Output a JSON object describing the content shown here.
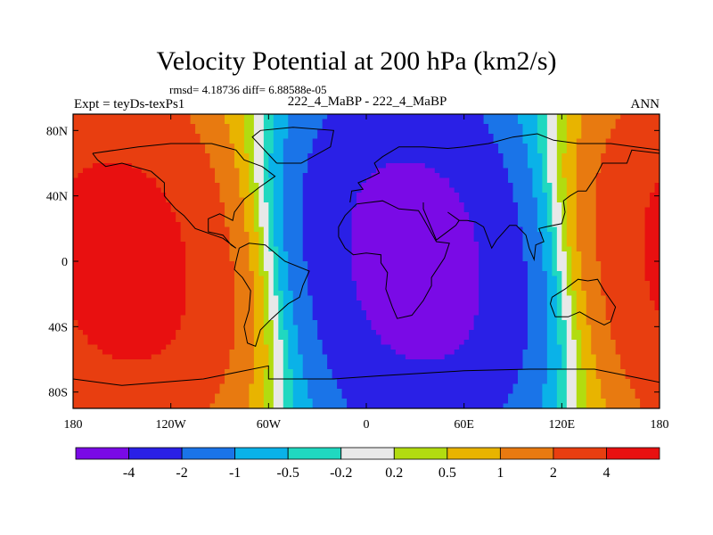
{
  "header": {
    "title": "Velocity Potential at 200 hPa (km2/s)",
    "stats": "rmsd= 4.18736  diff= 6.88588e-05",
    "expt": "Expt = teyDs-texPs1",
    "case": "222_4_MaBP - 222_4_MaBP",
    "season": "ANN"
  },
  "chart_data": {
    "type": "heatmap",
    "title": "Velocity Potential at 200 hPa (km2/s)",
    "subtitle": "222_4_MaBP - 222_4_MaBP",
    "xlabel": "",
    "ylabel": "",
    "xlim": [
      -180,
      180
    ],
    "ylim": [
      -90,
      90
    ],
    "x_ticks": [
      {
        "value": -180,
        "label": "180"
      },
      {
        "value": -120,
        "label": "120W"
      },
      {
        "value": -60,
        "label": "60W"
      },
      {
        "value": 0,
        "label": "0"
      },
      {
        "value": 60,
        "label": "60E"
      },
      {
        "value": 120,
        "label": "120E"
      },
      {
        "value": 180,
        "label": "180"
      }
    ],
    "y_ticks": [
      {
        "value": 80,
        "label": "80N"
      },
      {
        "value": 40,
        "label": "40N"
      },
      {
        "value": 0,
        "label": "0"
      },
      {
        "value": -40,
        "label": "40S"
      },
      {
        "value": -80,
        "label": "80S"
      }
    ],
    "contour_levels": [
      -4,
      -2,
      -1,
      -0.5,
      -0.2,
      0.2,
      0.5,
      1,
      2,
      4
    ],
    "colorbar_labels": [
      "-4",
      "-2",
      "-1",
      "-0.5",
      "-0.2",
      "0.2",
      "0.5",
      "1",
      "2",
      "4"
    ],
    "colors": [
      "#7a0ae6",
      "#2a20e6",
      "#1a74e8",
      "#0ab2e8",
      "#20d8c0",
      "#e8e8e8",
      "#b2dc10",
      "#e8b400",
      "#e87a10",
      "#e83e10",
      "#e81010"
    ],
    "field_summary": "Wavenumber-1 pattern: negative minimum centered near 30E over Africa/Eurasia, positive maxima near 150W and 150E in the Pacific"
  }
}
